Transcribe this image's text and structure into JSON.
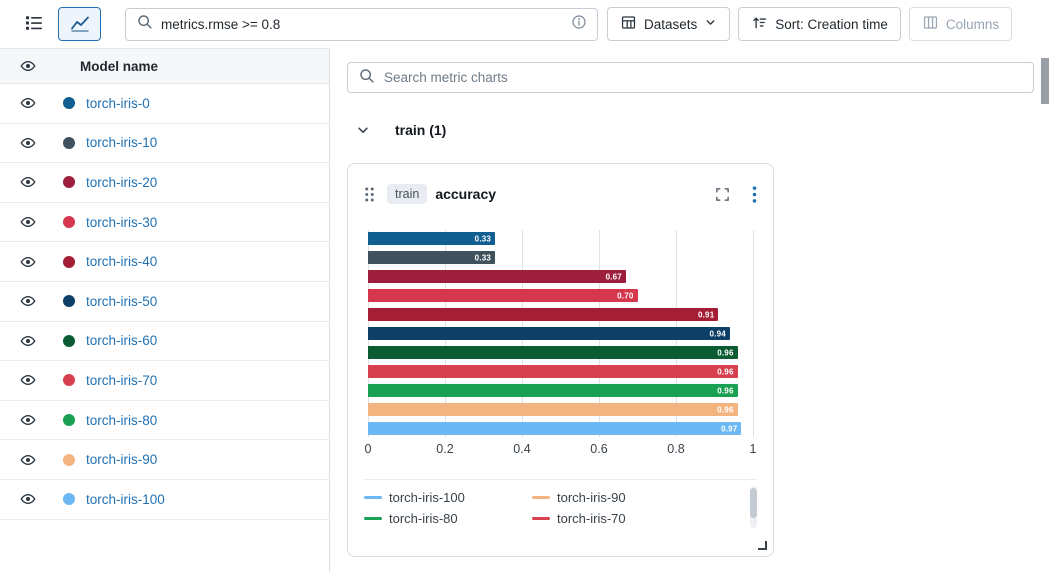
{
  "toolbar": {
    "search_value": "metrics.rmse >= 0.8",
    "datasets_label": "Datasets",
    "sort_label": "Sort: Creation time",
    "columns_label": "Columns"
  },
  "sidebar": {
    "header": "Model name",
    "runs": [
      {
        "name": "torch-iris-0",
        "color": "#115e90"
      },
      {
        "name": "torch-iris-10",
        "color": "#40525e"
      },
      {
        "name": "torch-iris-20",
        "color": "#9d1f3d"
      },
      {
        "name": "torch-iris-30",
        "color": "#d5374d"
      },
      {
        "name": "torch-iris-40",
        "color": "#a41f35"
      },
      {
        "name": "torch-iris-50",
        "color": "#0e3f66"
      },
      {
        "name": "torch-iris-60",
        "color": "#0b5c33"
      },
      {
        "name": "torch-iris-70",
        "color": "#d7404f"
      },
      {
        "name": "torch-iris-80",
        "color": "#1aa053"
      },
      {
        "name": "torch-iris-90",
        "color": "#f3b47f"
      },
      {
        "name": "torch-iris-100",
        "color": "#6cb8f4"
      }
    ]
  },
  "charts": {
    "search_placeholder": "Search metric charts",
    "section_label": "train (1)",
    "card": {
      "tag": "train",
      "title": "accuracy"
    }
  },
  "chart_data": {
    "type": "bar",
    "orientation": "horizontal",
    "title": "train accuracy",
    "xlabel": "",
    "ylabel": "",
    "xlim": [
      0,
      1
    ],
    "grid": true,
    "x_ticks": [
      0,
      0.2,
      0.4,
      0.6,
      0.8,
      1
    ],
    "x_tick_labels": [
      "0",
      "0.2",
      "0.4",
      "0.6",
      "0.8",
      "1"
    ],
    "categories": [
      "torch-iris-0",
      "torch-iris-10",
      "torch-iris-20",
      "torch-iris-30",
      "torch-iris-40",
      "torch-iris-50",
      "torch-iris-60",
      "torch-iris-70",
      "torch-iris-80",
      "torch-iris-90",
      "torch-iris-100"
    ],
    "values": [
      0.33,
      0.33,
      0.67,
      0.7,
      0.91,
      0.94,
      0.96,
      0.96,
      0.96,
      0.96,
      0.97
    ],
    "value_labels": [
      "0.33",
      "0.33",
      "0.67",
      "0.70",
      "0.91",
      "0.94",
      "0.96",
      "0.96",
      "0.96",
      "0.96",
      "0.97"
    ],
    "colors": [
      "#115e90",
      "#40525e",
      "#9d1f3d",
      "#d5374d",
      "#a41f35",
      "#0e3f66",
      "#0b5c33",
      "#d7404f",
      "#1aa053",
      "#f3b47f",
      "#6cb8f4"
    ],
    "legend_position": "bottom",
    "legend": [
      {
        "label": "torch-iris-100",
        "color": "#6cb8f4"
      },
      {
        "label": "torch-iris-90",
        "color": "#f3b47f"
      },
      {
        "label": "torch-iris-80",
        "color": "#1aa053"
      },
      {
        "label": "torch-iris-70",
        "color": "#d7404f"
      }
    ]
  }
}
